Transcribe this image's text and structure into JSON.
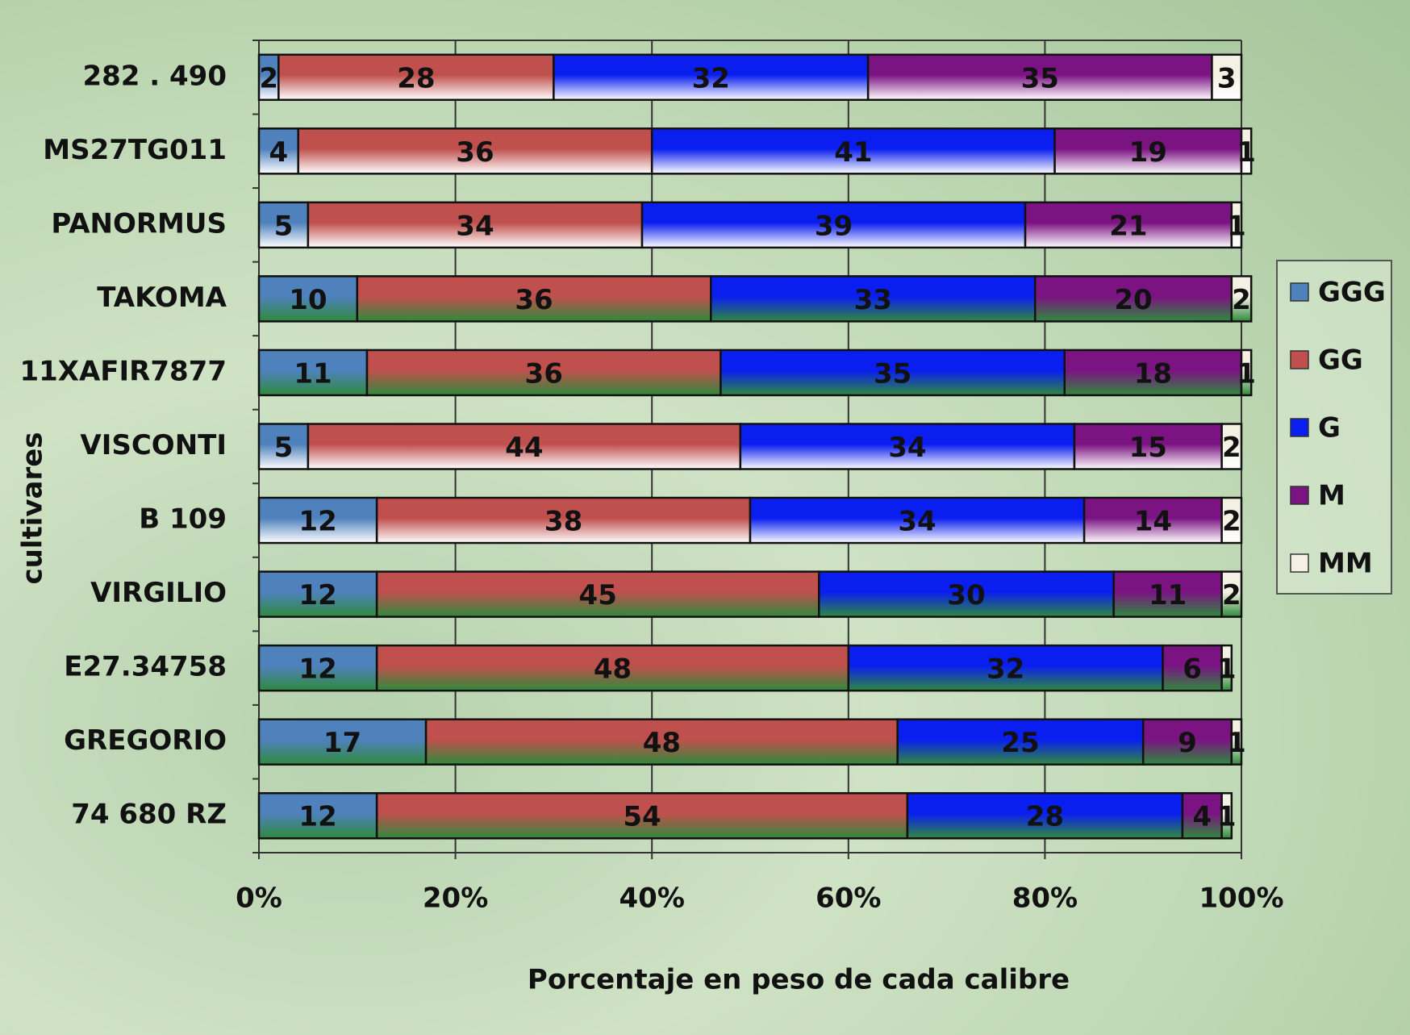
{
  "chart_data": {
    "type": "stacked_barh",
    "x_axis_label": "Porcentaje en peso de cada calibre",
    "y_axis_label": "cultivares",
    "categories": [
      "282 . 490",
      "MS27TG011",
      "PANORMUS",
      "TAKOMA",
      "11XAFIR7877",
      "VISCONTI",
      "B 109",
      "VIRGILIO",
      "E27.34758",
      "GREGORIO",
      "74 680 RZ"
    ],
    "series": [
      {
        "name": "GGG",
        "color": "#4f81bd",
        "values": [
          2,
          4,
          5,
          10,
          11,
          5,
          12,
          12,
          12,
          17,
          12
        ]
      },
      {
        "name": "GG",
        "color": "#c0504d",
        "values": [
          28,
          36,
          34,
          36,
          36,
          44,
          38,
          45,
          48,
          48,
          54
        ]
      },
      {
        "name": "G",
        "color": "#0a1ef0",
        "values": [
          32,
          41,
          39,
          33,
          35,
          34,
          34,
          30,
          32,
          25,
          28
        ]
      },
      {
        "name": "M",
        "color": "#7b1383",
        "values": [
          35,
          19,
          21,
          20,
          18,
          15,
          14,
          11,
          6,
          9,
          4
        ]
      },
      {
        "name": "MM",
        "color": "#f4f1e4",
        "values": [
          3,
          1,
          1,
          2,
          1,
          2,
          2,
          2,
          1,
          1,
          1
        ]
      }
    ],
    "gradient_bottom": [
      "#ffffff",
      "#ffffff",
      "#ffffff",
      "#2f8a3c",
      "#2f8a3c",
      "#ffffff",
      "#ffffff",
      "#2f8a3c",
      "#2f8a3c",
      "#2f8a3c",
      "#2f8a3c"
    ],
    "xlim": [
      0,
      100
    ],
    "xticks": [
      {
        "value": 0,
        "label": "0%"
      },
      {
        "value": 20,
        "label": "20%"
      },
      {
        "value": 40,
        "label": "40%"
      },
      {
        "value": 60,
        "label": "60%"
      },
      {
        "value": 80,
        "label": "80%"
      },
      {
        "value": 100,
        "label": "100%"
      }
    ],
    "grid": true,
    "legend_position": "right"
  }
}
